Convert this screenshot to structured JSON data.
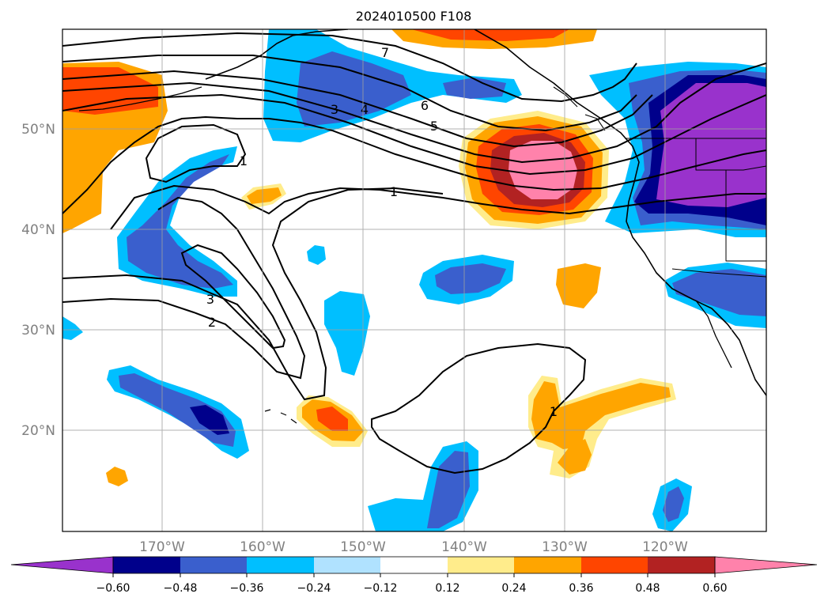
{
  "title": "2024010500 F108",
  "lat_labels": [
    "50°N",
    "40°N",
    "30°N",
    "20°N"
  ],
  "lon_labels": [
    "170°W",
    "160°W",
    "150°W",
    "140°W",
    "130°W",
    "120°W"
  ],
  "colorbar": {
    "ticks": [
      "−0.60",
      "−0.48",
      "−0.36",
      "−0.24",
      "−0.12",
      "0.12",
      "0.24",
      "0.36",
      "0.48",
      "0.60"
    ],
    "colors": [
      "#9932cc",
      "#00008b",
      "#3a5fcd",
      "#00bfff",
      "#b0e2ff",
      "#ffffff",
      "#ffec8b",
      "#ffa500",
      "#ff4500",
      "#b22222",
      "#ff82ab"
    ]
  },
  "contour_labels": [
    "7",
    "6",
    "5",
    "4",
    "3",
    "1",
    "1",
    "3",
    "2",
    "1"
  ],
  "colors": {
    "contour": "#000000",
    "grid": "#b0b0b0",
    "axis_label": "#808080"
  }
}
